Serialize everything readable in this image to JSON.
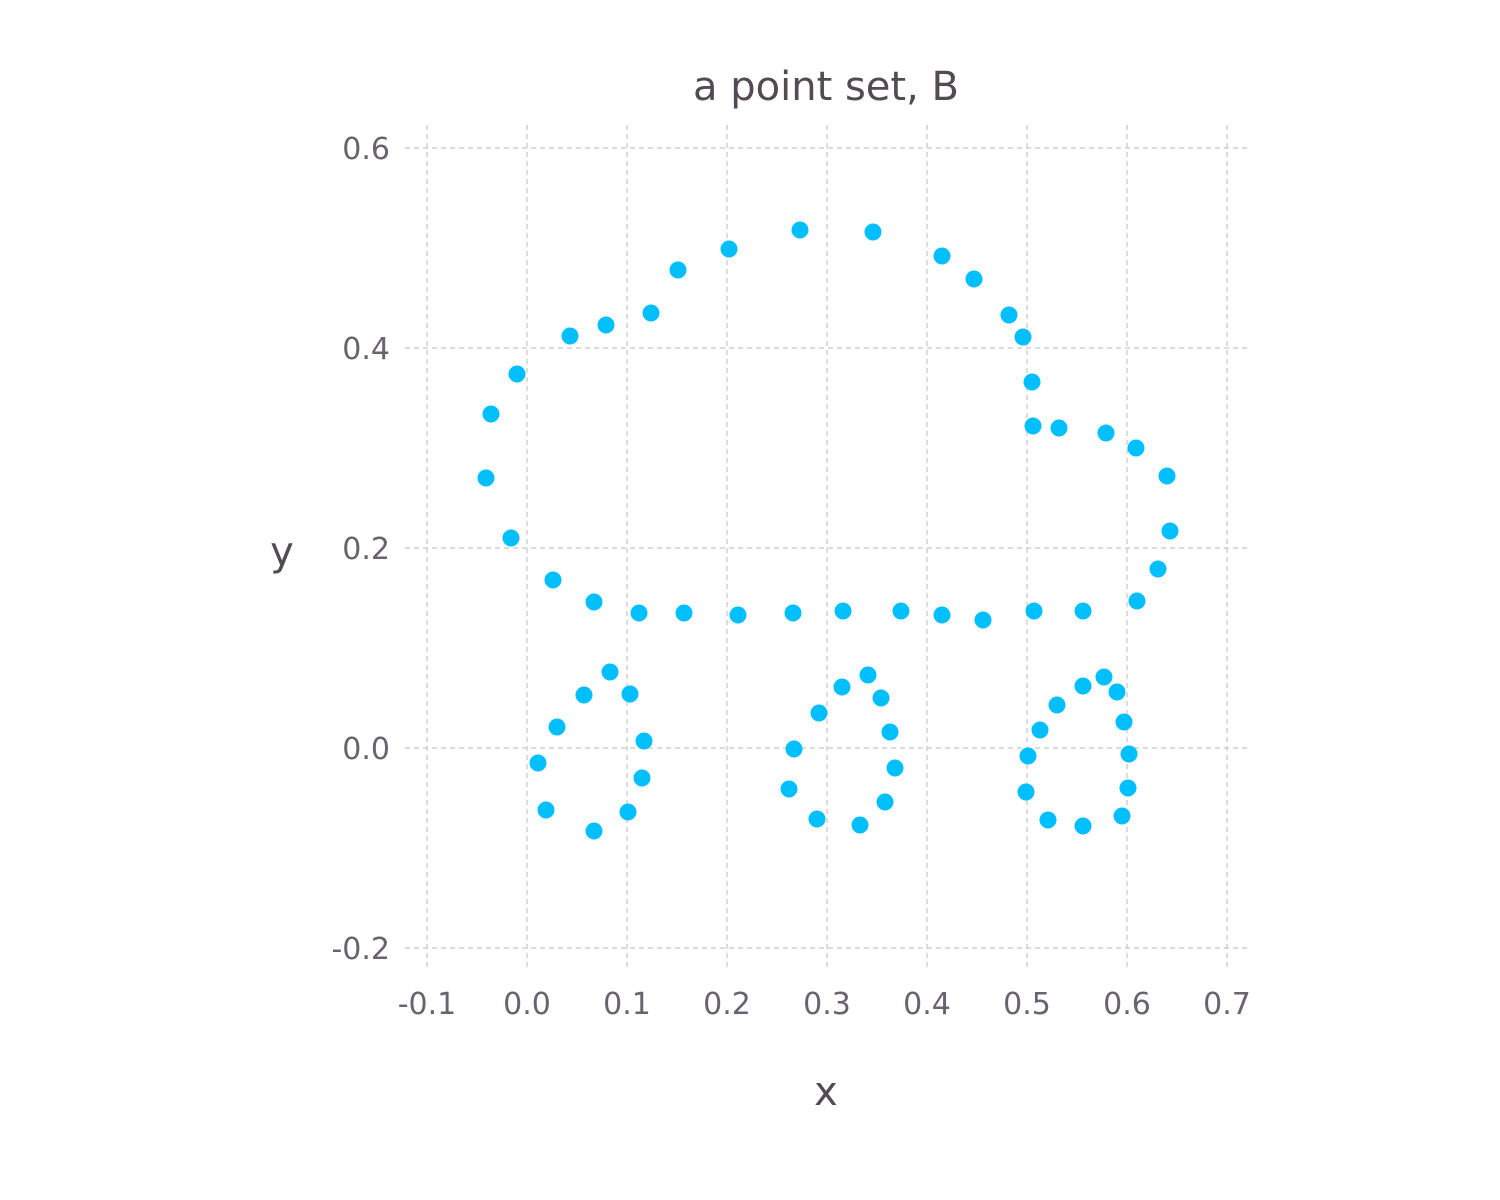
{
  "chart_data": {
    "type": "scatter",
    "title": "a point set, B",
    "xlabel": "x",
    "ylabel": "y",
    "xlim": [
      -0.1,
      0.7
    ],
    "ylim": [
      -0.2,
      0.6
    ],
    "xticks": [
      "-0.1",
      "0.0",
      "0.1",
      "0.2",
      "0.3",
      "0.4",
      "0.5",
      "0.6",
      "0.7"
    ],
    "yticks": [
      "-0.2",
      "0.0",
      "0.2",
      "0.4",
      "0.6"
    ],
    "grid": true,
    "marker_color": "#00bfff",
    "points": [
      [
        -0.041,
        0.27
      ],
      [
        -0.036,
        0.334
      ],
      [
        -0.01,
        0.374
      ],
      [
        -0.016,
        0.21
      ],
      [
        0.043,
        0.412
      ],
      [
        0.079,
        0.423
      ],
      [
        0.124,
        0.435
      ],
      [
        0.151,
        0.478
      ],
      [
        0.202,
        0.499
      ],
      [
        0.273,
        0.518
      ],
      [
        0.346,
        0.516
      ],
      [
        0.415,
        0.492
      ],
      [
        0.447,
        0.469
      ],
      [
        0.482,
        0.433
      ],
      [
        0.496,
        0.411
      ],
      [
        0.505,
        0.366
      ],
      [
        0.506,
        0.322
      ],
      [
        0.532,
        0.32
      ],
      [
        0.579,
        0.315
      ],
      [
        0.609,
        0.3
      ],
      [
        0.64,
        0.272
      ],
      [
        0.643,
        0.217
      ],
      [
        0.631,
        0.179
      ],
      [
        0.61,
        0.147
      ],
      [
        0.556,
        0.137
      ],
      [
        0.507,
        0.137
      ],
      [
        0.456,
        0.128
      ],
      [
        0.415,
        0.133
      ],
      [
        0.374,
        0.137
      ],
      [
        0.316,
        0.137
      ],
      [
        0.266,
        0.135
      ],
      [
        0.211,
        0.133
      ],
      [
        0.157,
        0.135
      ],
      [
        0.112,
        0.135
      ],
      [
        0.067,
        0.146
      ],
      [
        0.026,
        0.168
      ],
      [
        0.083,
        0.076
      ],
      [
        0.057,
        0.053
      ],
      [
        0.103,
        0.054
      ],
      [
        0.03,
        0.021
      ],
      [
        0.117,
        0.007
      ],
      [
        0.011,
        -0.015
      ],
      [
        0.115,
        -0.03
      ],
      [
        0.019,
        -0.062
      ],
      [
        0.101,
        -0.064
      ],
      [
        0.067,
        -0.083
      ],
      [
        0.341,
        0.073
      ],
      [
        0.315,
        0.061
      ],
      [
        0.354,
        0.05
      ],
      [
        0.292,
        0.035
      ],
      [
        0.363,
        0.016
      ],
      [
        0.267,
        -0.001
      ],
      [
        0.368,
        -0.02
      ],
      [
        0.262,
        -0.041
      ],
      [
        0.358,
        -0.054
      ],
      [
        0.29,
        -0.071
      ],
      [
        0.333,
        -0.077
      ],
      [
        0.577,
        0.071
      ],
      [
        0.59,
        0.056
      ],
      [
        0.556,
        0.062
      ],
      [
        0.53,
        0.043
      ],
      [
        0.597,
        0.026
      ],
      [
        0.513,
        0.018
      ],
      [
        0.602,
        -0.006
      ],
      [
        0.501,
        -0.008
      ],
      [
        0.601,
        -0.04
      ],
      [
        0.499,
        -0.044
      ],
      [
        0.521,
        -0.072
      ],
      [
        0.595,
        -0.068
      ],
      [
        0.556,
        -0.078
      ]
    ]
  }
}
